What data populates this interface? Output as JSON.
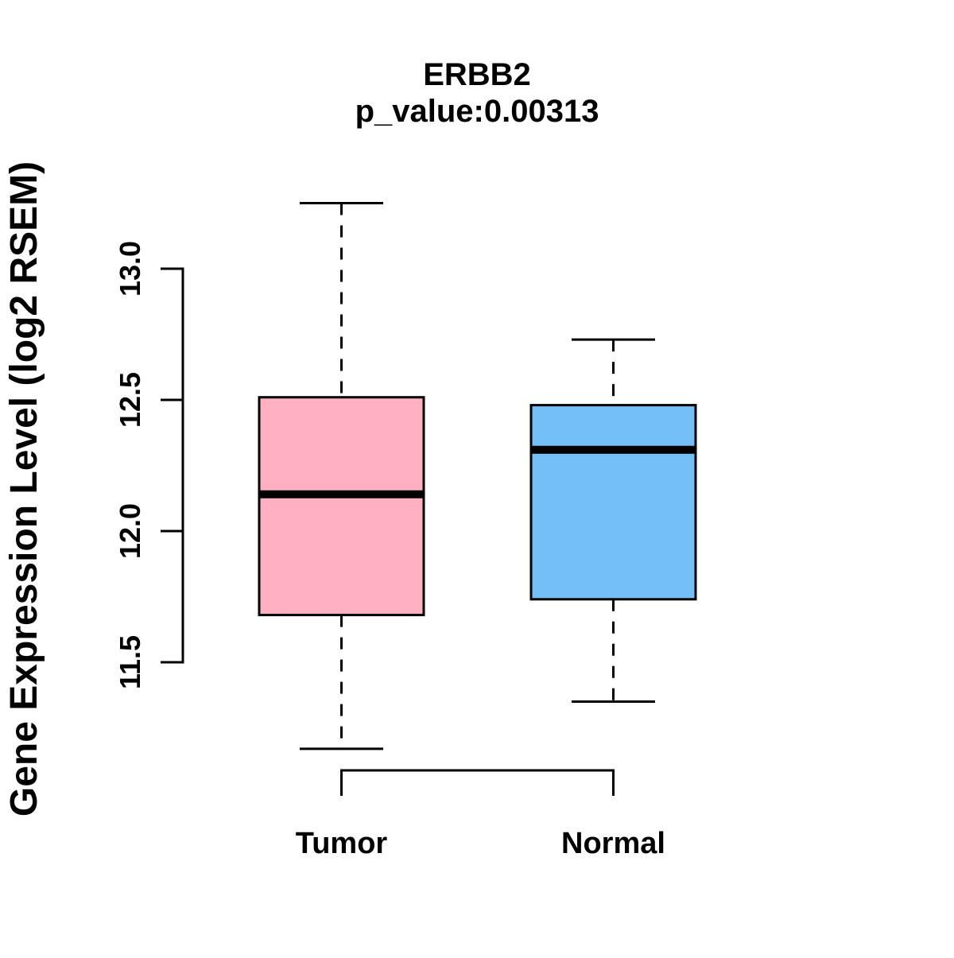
{
  "chart_data": {
    "type": "boxplot",
    "title": "ERBB2",
    "subtitle": "p_value:0.00313",
    "ylabel": "Gene Expression Level (log2 RSEM)",
    "categories": [
      "Tumor",
      "Normal"
    ],
    "axis_range": [
      11.5,
      13.0
    ],
    "yticks": [
      11.5,
      12.0,
      12.5,
      13.0
    ],
    "ytick_labels": [
      "11.5",
      "12.0",
      "12.5",
      "13.0"
    ],
    "grid": false,
    "legend": "none",
    "series": [
      {
        "name": "Tumor",
        "color": "#FFB0C1",
        "whisker_low": 11.17,
        "q1": 11.68,
        "median": 12.14,
        "q3": 12.51,
        "whisker_high": 13.25
      },
      {
        "name": "Normal",
        "color": "#74BFF8",
        "whisker_low": 11.35,
        "q1": 11.74,
        "median": 12.31,
        "q3": 12.48,
        "whisker_high": 12.73
      }
    ],
    "comparison_bracket": {
      "between": [
        "Tumor",
        "Normal"
      ]
    }
  },
  "colors": {
    "tumor_fill": "#FFB0C1",
    "normal_fill": "#74BFF8",
    "stroke": "#000000",
    "background": "#FFFFFF"
  }
}
